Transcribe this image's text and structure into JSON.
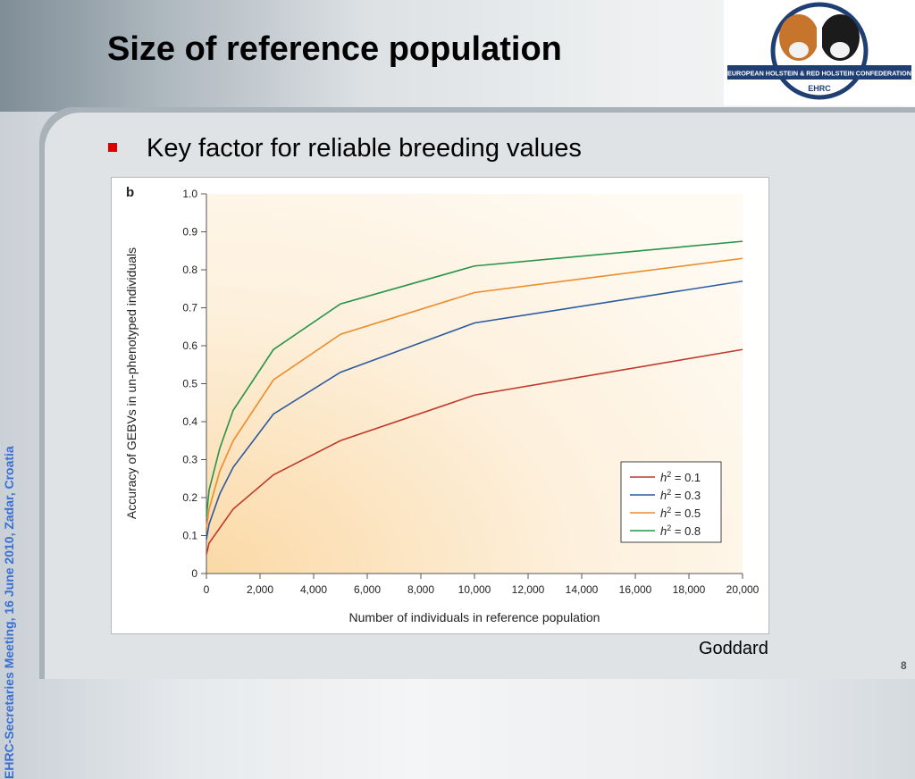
{
  "slide": {
    "title": "Size of reference population",
    "bullet": "Key factor for reliable breeding values",
    "sidebar": "EHRC-Secretaries Meeting, 16 June 2010, Zadar, Croatia",
    "credit": "Goddard",
    "page_number": "8",
    "logo_text": "EUROPEAN HOLSTEIN & RED HOLSTEIN CONFEDERATION",
    "logo_abbr": "EHRC"
  },
  "colors": {
    "bullet": "#e00000",
    "sidebar_text": "#3b6fd1",
    "logo_navy": "#1f3f73"
  },
  "chart_data": {
    "type": "line",
    "panel_label": "b",
    "xlabel": "Number of individuals in reference population",
    "ylabel": "Accuracy of GEBVs in un-phenotyped individuals",
    "xlim": [
      0,
      20000
    ],
    "ylim": [
      0,
      1.0
    ],
    "x_ticks": [
      0,
      2000,
      4000,
      6000,
      8000,
      10000,
      12000,
      14000,
      16000,
      18000,
      20000
    ],
    "x_tick_labels": [
      "0",
      "2,000",
      "4,000",
      "6,000",
      "8,000",
      "10,000",
      "12,000",
      "14,000",
      "16,000",
      "18,000",
      "20,000"
    ],
    "y_ticks": [
      0,
      0.1,
      0.2,
      0.3,
      0.4,
      0.5,
      0.6,
      0.7,
      0.8,
      0.9,
      1.0
    ],
    "y_tick_labels": [
      "0",
      "0.1",
      "0.2",
      "0.3",
      "0.4",
      "0.5",
      "0.6",
      "0.7",
      "0.8",
      "0.9",
      "1.0"
    ],
    "legend_position": "bottom-right",
    "grid": false,
    "x": [
      0,
      100,
      500,
      1000,
      2500,
      5000,
      10000,
      20000
    ],
    "series": [
      {
        "name": "h2 = 0.1",
        "color": "#c0392b",
        "values": [
          0.05,
          0.08,
          0.12,
          0.17,
          0.26,
          0.35,
          0.47,
          0.59
        ]
      },
      {
        "name": "h2 = 0.3",
        "color": "#2c5aa0",
        "values": [
          0.09,
          0.13,
          0.21,
          0.28,
          0.42,
          0.53,
          0.66,
          0.77
        ]
      },
      {
        "name": "h2 = 0.5",
        "color": "#ee8b2a",
        "values": [
          0.12,
          0.17,
          0.27,
          0.35,
          0.51,
          0.63,
          0.74,
          0.83
        ]
      },
      {
        "name": "h2 = 0.8",
        "color": "#27944a",
        "values": [
          0.15,
          0.22,
          0.33,
          0.43,
          0.59,
          0.71,
          0.81,
          0.875
        ]
      }
    ]
  }
}
